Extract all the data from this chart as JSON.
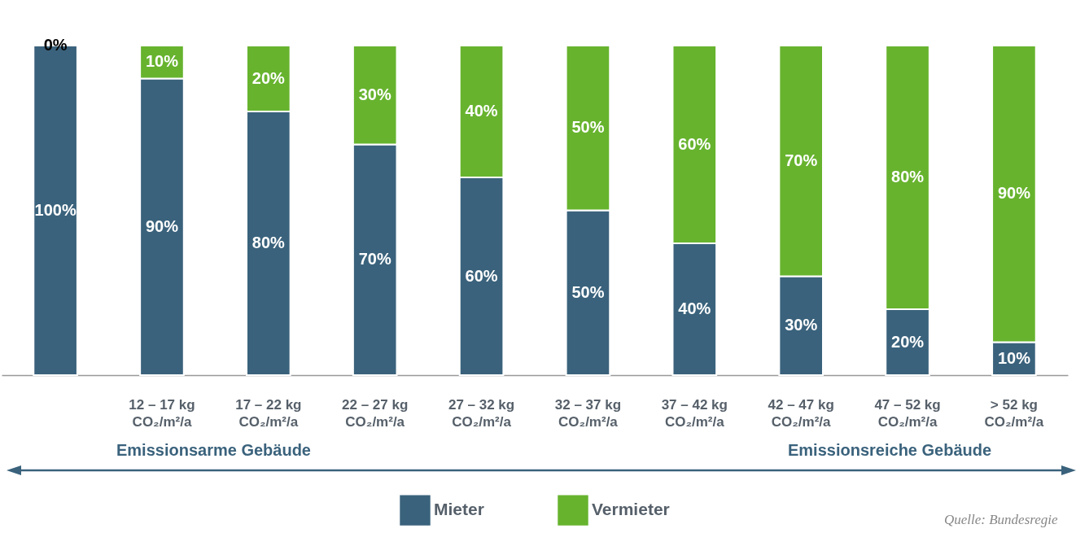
{
  "chart_data": {
    "type": "bar",
    "stacked": true,
    "legend": "bottom",
    "categories": [
      null,
      "12 – 17 kg\nCO₂/m²/a",
      "17 – 22 kg\nCO₂/m²/a",
      "22 – 27 kg\nCO₂/m²/a",
      "27 – 32 kg\nCO₂/m²/a",
      "32 – 37 kg\nCO₂/m²/a",
      "37 – 42 kg\nCO₂/m²/a",
      "42 – 47 kg\nCO₂/m²/a",
      "47 – 52 kg\nCO₂/m²/a",
      "> 52 kg\nCO₂/m²/a"
    ],
    "series": [
      {
        "name": "Mieter",
        "color": "#3a627c",
        "values": [
          100,
          90,
          80,
          70,
          60,
          50,
          40,
          30,
          20,
          10
        ],
        "value_labels": [
          "100%",
          "90%",
          "80%",
          "70%",
          "60%",
          "50%",
          "40%",
          "30%",
          "20%",
          "10%"
        ]
      },
      {
        "name": "Vermieter",
        "color": "#67b32e",
        "values": [
          0,
          10,
          20,
          30,
          40,
          50,
          60,
          70,
          80,
          90
        ],
        "value_labels": [
          "0%",
          "10%",
          "20%",
          "30%",
          "40%",
          "50%",
          "60%",
          "70%",
          "80%",
          "90%"
        ]
      }
    ],
    "annotations": [
      "Emissionsarme Gebäude",
      "Emissionsreiche Gebäude",
      "Quelle: Bundesregie"
    ]
  }
}
